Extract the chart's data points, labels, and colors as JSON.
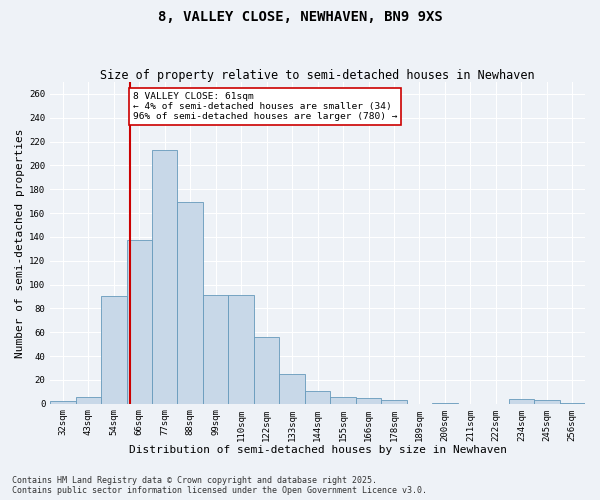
{
  "title": "8, VALLEY CLOSE, NEWHAVEN, BN9 9XS",
  "subtitle": "Size of property relative to semi-detached houses in Newhaven",
  "xlabel": "Distribution of semi-detached houses by size in Newhaven",
  "ylabel": "Number of semi-detached properties",
  "bar_color": "#c8d8e8",
  "bar_edge_color": "#6699bb",
  "property_line_x": 2,
  "property_label": "8 VALLEY CLOSE: 61sqm",
  "annotation_line1": "← 4% of semi-detached houses are smaller (34)",
  "annotation_line2": "96% of semi-detached houses are larger (780) →",
  "bin_labels": [
    "32sqm",
    "43sqm",
    "54sqm",
    "66sqm",
    "77sqm",
    "88sqm",
    "99sqm",
    "110sqm",
    "122sqm",
    "133sqm",
    "144sqm",
    "155sqm",
    "166sqm",
    "178sqm",
    "189sqm",
    "200sqm",
    "211sqm",
    "222sqm",
    "234sqm",
    "245sqm",
    "256sqm"
  ],
  "counts": [
    2,
    6,
    90,
    137,
    213,
    169,
    91,
    91,
    56,
    25,
    11,
    6,
    5,
    3,
    0,
    1,
    0,
    0,
    4,
    3,
    1
  ],
  "ylim": [
    0,
    270
  ],
  "yticks": [
    0,
    20,
    40,
    60,
    80,
    100,
    120,
    140,
    160,
    180,
    200,
    220,
    240,
    260
  ],
  "background_color": "#eef2f7",
  "footer_line1": "Contains HM Land Registry data © Crown copyright and database right 2025.",
  "footer_line2": "Contains public sector information licensed under the Open Government Licence v3.0.",
  "title_fontsize": 10,
  "subtitle_fontsize": 8.5,
  "label_fontsize": 8,
  "tick_fontsize": 6.5,
  "annotation_box_color": "#ffffff",
  "annotation_box_edge": "#cc0000",
  "red_line_color": "#cc0000",
  "footer_fontsize": 6
}
